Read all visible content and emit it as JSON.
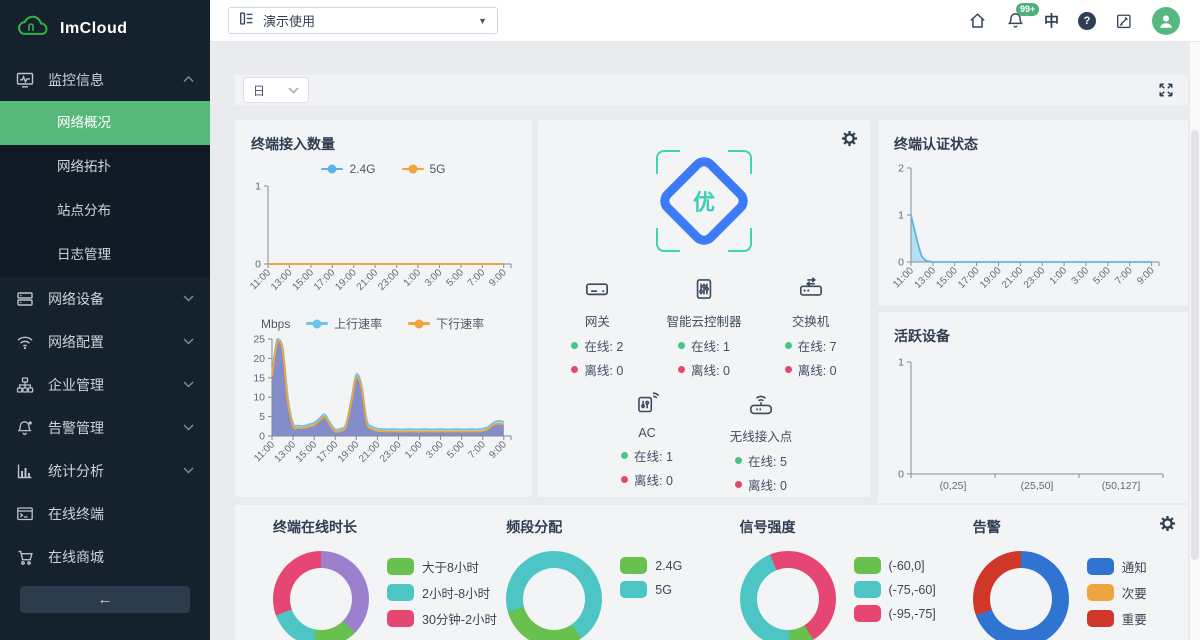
{
  "brand": {
    "name": "ImCloud"
  },
  "sidebar": {
    "group": {
      "label": "监控信息",
      "icon": "monitor-chart-icon",
      "name": "monitoring-info"
    },
    "submenu": [
      {
        "label": "网络概况",
        "name": "network-overview",
        "active": true
      },
      {
        "label": "网络拓扑",
        "name": "network-topology"
      },
      {
        "label": "站点分布",
        "name": "site-distribution"
      },
      {
        "label": "日志管理",
        "name": "log-management"
      }
    ],
    "items": [
      {
        "label": "网络设备",
        "icon": "server-icon",
        "name": "network-devices",
        "chevron": true
      },
      {
        "label": "网络配置",
        "icon": "wifi-icon",
        "name": "network-config",
        "chevron": true
      },
      {
        "label": "企业管理",
        "icon": "sitemap-icon",
        "name": "enterprise-management",
        "chevron": true
      },
      {
        "label": "告警管理",
        "icon": "alarm-bell-icon",
        "name": "alarm-management",
        "chevron": true
      },
      {
        "label": "统计分析",
        "icon": "bar-chart-icon",
        "name": "statistics-analysis",
        "chevron": true
      },
      {
        "label": "在线终端",
        "icon": "terminal-icon",
        "name": "online-terminals",
        "chevron": false
      },
      {
        "label": "在线商城",
        "icon": "cart-icon",
        "name": "online-mall",
        "chevron": false
      }
    ]
  },
  "topbar": {
    "workspace": "演示使用",
    "notification_badge": "99+",
    "language": "中"
  },
  "toolbar": {
    "period": "日"
  },
  "health": {
    "grade": "优",
    "labels": {
      "online": "在线:",
      "offline": "离线:"
    },
    "devices": [
      {
        "label": "网关",
        "name": "gateway",
        "icon": "gateway-icon",
        "online": 2,
        "offline": 0
      },
      {
        "label": "智能云控制器",
        "name": "cloud-controller",
        "icon": "cloud-controller-icon",
        "online": 1,
        "offline": 0
      },
      {
        "label": "交换机",
        "name": "switch",
        "icon": "switch-icon",
        "online": 7,
        "offline": 0
      },
      {
        "label": "AC",
        "name": "ac",
        "icon": "ac-icon",
        "online": 1,
        "offline": 0
      },
      {
        "label": "无线接入点",
        "name": "wireless-ap",
        "icon": "ap-icon",
        "online": 5,
        "offline": 0
      }
    ]
  },
  "chart_data": [
    {
      "name": "terminal-access",
      "type": "line",
      "title": "终端接入数量",
      "x": [
        "11:00",
        "13:00",
        "15:00",
        "17:00",
        "19:00",
        "21:00",
        "23:00",
        "1:00",
        "3:00",
        "5:00",
        "7:00",
        "9:00"
      ],
      "ylim": [
        0,
        1
      ],
      "yticks": [
        0,
        1
      ],
      "legend_position": "top",
      "series": [
        {
          "name": "2.4G",
          "color": "#5ab4e5",
          "values": [
            0,
            0,
            0,
            0,
            0,
            0,
            0,
            0,
            0,
            0,
            0,
            0
          ]
        },
        {
          "name": "5G",
          "color": "#f2a43a",
          "values": [
            0,
            0,
            0,
            0,
            0,
            0,
            0,
            0,
            0,
            0,
            0,
            0
          ]
        }
      ]
    },
    {
      "name": "throughput",
      "type": "area",
      "unit": "Mbps",
      "x": [
        "11:00",
        "13:00",
        "15:00",
        "17:00",
        "19:00",
        "21:00",
        "23:00",
        "1:00",
        "3:00",
        "5:00",
        "7:00",
        "9:00"
      ],
      "ylim": [
        0,
        25
      ],
      "yticks": [
        0,
        5,
        10,
        15,
        20,
        25
      ],
      "legend_position": "top",
      "series": [
        {
          "name": "上行速率",
          "color": "#6fc4ea",
          "fill": "#a9dcf0",
          "values": [
            16,
            25,
            23,
            10,
            3.2,
            2.7,
            2.6,
            3,
            3.4,
            4.5,
            5.6,
            3.4,
            1.7,
            1.9,
            2.9,
            9,
            15.8,
            13,
            4,
            2.4,
            1.9,
            1.8,
            1.7,
            1.8,
            1.7,
            1.7,
            1.8,
            1.7,
            1.7,
            1.8,
            1.7,
            1.7,
            1.8,
            1.7,
            1.7,
            1.8,
            1.7,
            1.7,
            1.8,
            1.7,
            1.9,
            2.3,
            3.4,
            3.9,
            3.6
          ]
        },
        {
          "name": "下行速率",
          "color": "#f2a43a",
          "fill": "#838dc9",
          "values": [
            15.4,
            24.3,
            22,
            9,
            2.6,
            2.1,
            2.1,
            2.4,
            2.8,
            3.9,
            4.9,
            2.8,
            1.1,
            1.3,
            2.3,
            8.2,
            15,
            12.2,
            3.3,
            1.8,
            1.3,
            1.2,
            1.1,
            1.2,
            1.1,
            1.1,
            1.2,
            1.1,
            1.1,
            1.2,
            1.1,
            1.1,
            1.2,
            1.1,
            1.1,
            1.2,
            1.1,
            1.1,
            1.2,
            1.1,
            1.3,
            1.8,
            2.8,
            3.2,
            3
          ]
        }
      ]
    },
    {
      "name": "auth-status",
      "type": "area",
      "title": "终端认证状态",
      "x": [
        "11:00",
        "13:00",
        "15:00",
        "17:00",
        "19:00",
        "21:00",
        "23:00",
        "1:00",
        "3:00",
        "5:00",
        "7:00",
        "9:00"
      ],
      "ylim": [
        0,
        2
      ],
      "yticks": [
        0,
        1,
        2
      ],
      "series": [
        {
          "name": "认证状态",
          "color": "#5fb6e3",
          "fill": "#b5e0f2",
          "values": [
            1,
            0.12,
            0,
            0,
            0,
            0,
            0,
            0,
            0,
            0,
            0,
            0,
            0,
            0,
            0,
            0,
            0,
            0,
            0,
            0,
            0,
            0,
            0
          ]
        }
      ]
    },
    {
      "name": "active-devices",
      "type": "bar",
      "title": "活跃设备",
      "categories": [
        "(0,25]",
        "(25,50]",
        "(50,127]"
      ],
      "values": [
        0,
        0,
        0
      ],
      "ylim": [
        0,
        1
      ],
      "yticks": [
        0,
        1
      ]
    },
    {
      "name": "online-duration",
      "type": "pie",
      "title": "终端在线时长",
      "slices": [
        {
          "color": "#9b80cd",
          "deg": 135
        },
        {
          "color": "#68c14e",
          "deg": 55
        },
        {
          "color": "#4ec5c5",
          "deg": 60
        },
        {
          "color": "#e64672",
          "deg": 110
        }
      ],
      "legend": [
        {
          "label": "大于8小时",
          "color": "#68c14e"
        },
        {
          "label": "2小时-8小时",
          "color": "#4ec5c5"
        },
        {
          "label": "30分钟-2小时",
          "color": "#e64672"
        }
      ]
    },
    {
      "name": "band-allocation",
      "type": "pie",
      "title": "频段分配",
      "slices": [
        {
          "color": "#4ec5c5",
          "deg": 145
        },
        {
          "color": "#68c14e",
          "deg": 110
        },
        {
          "color": "#4ec5c5",
          "deg": 105
        }
      ],
      "legend": [
        {
          "label": "2.4G",
          "color": "#68c14e"
        },
        {
          "label": "5G",
          "color": "#4ec5c5"
        }
      ]
    },
    {
      "name": "signal-strength",
      "type": "pie",
      "title": "信号强度",
      "slices": [
        {
          "color": "#e64672",
          "deg": 148
        },
        {
          "color": "#68c14e",
          "deg": 30
        },
        {
          "color": "#4ec5c5",
          "deg": 160
        },
        {
          "color": "#e64672",
          "deg": 22
        }
      ],
      "legend": [
        {
          "label": "(-60,0]",
          "color": "#68c14e"
        },
        {
          "label": "(-75,-60]",
          "color": "#4ec5c5"
        },
        {
          "label": "(-95,-75]",
          "color": "#e64672"
        }
      ]
    },
    {
      "name": "alarms",
      "type": "pie",
      "title": "告警",
      "slices": [
        {
          "color": "#2f74d0",
          "deg": 250
        },
        {
          "color": "#cf3729",
          "deg": 110
        }
      ],
      "legend": [
        {
          "label": "通知",
          "color": "#2f74d0"
        },
        {
          "label": "次要",
          "color": "#eda63d"
        },
        {
          "label": "重要",
          "color": "#cf3729"
        }
      ]
    }
  ]
}
